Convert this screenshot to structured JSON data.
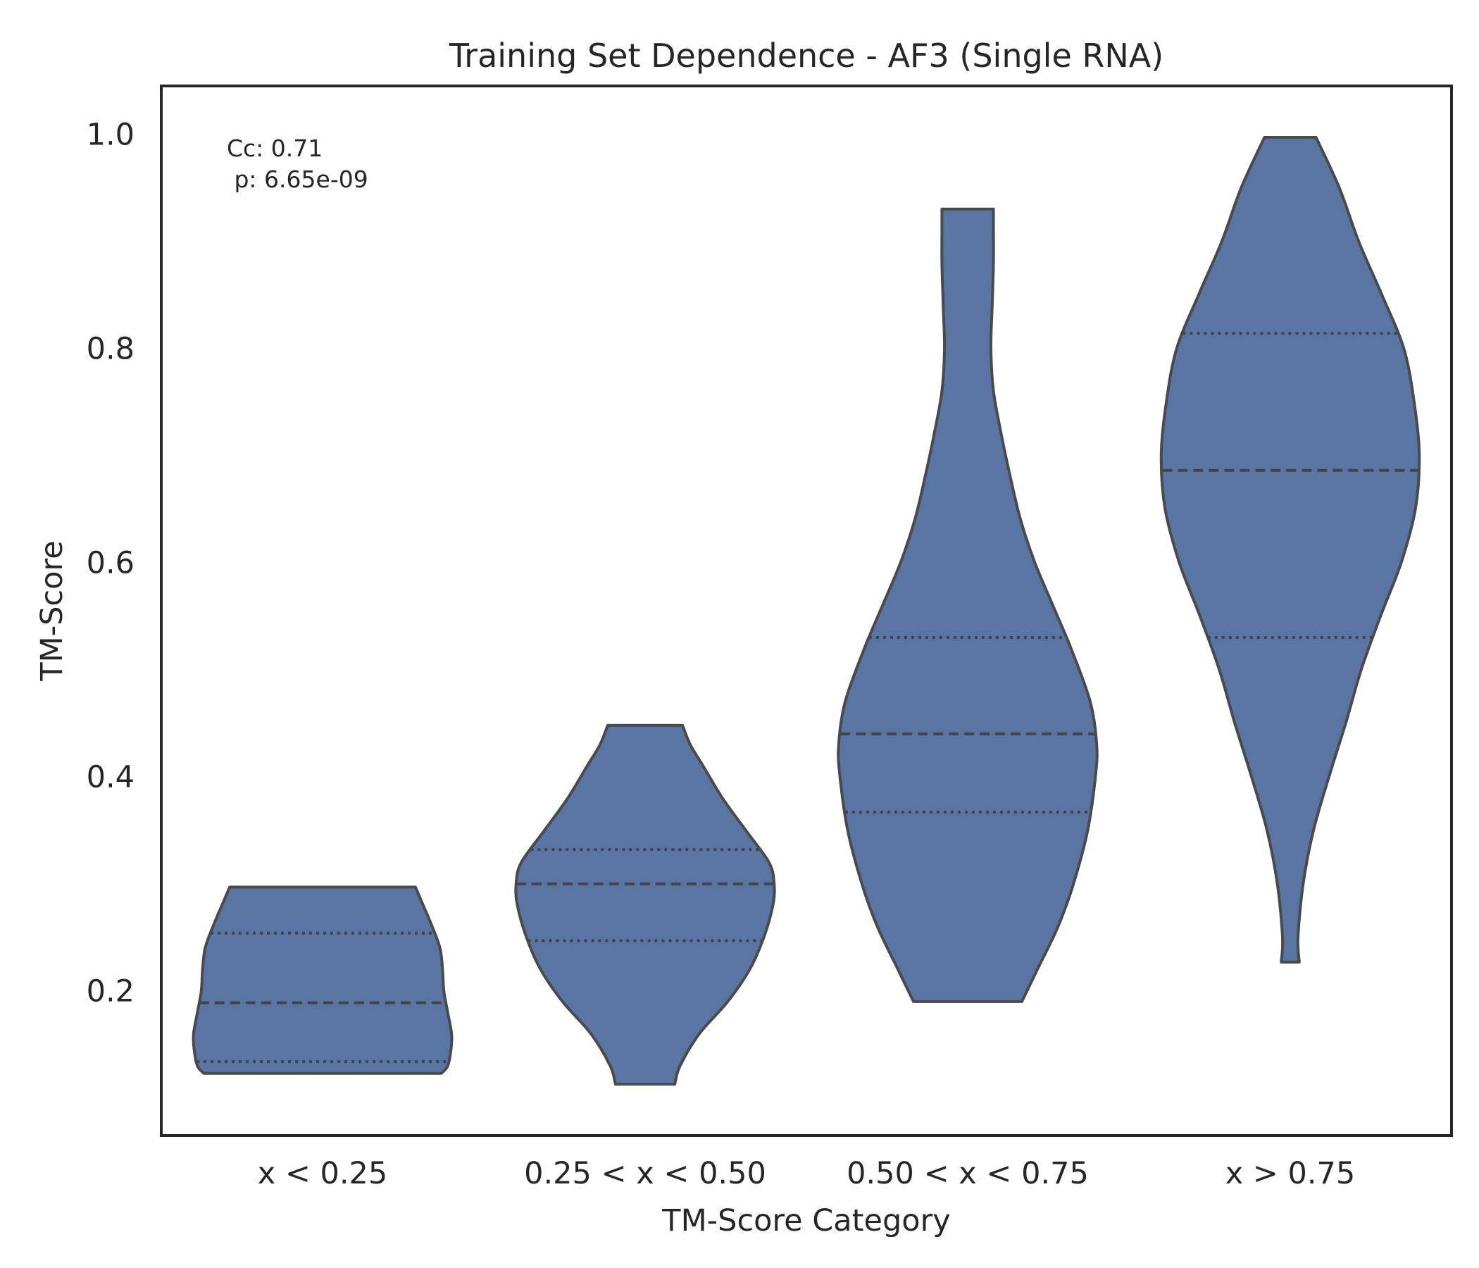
{
  "chart_data": {
    "type": "violin",
    "title": "Training Set Dependence - AF3 (Single RNA)",
    "xlabel": "TM-Score Category",
    "ylabel": "TM-Score",
    "categories": [
      "x < 0.25",
      "0.25 < x < 0.50",
      "0.50 < x < 0.75",
      "x > 0.75"
    ],
    "yticks": [
      "0.2",
      "0.4",
      "0.6",
      "0.8",
      "1.0"
    ],
    "ylim": [
      0.065,
      1.045
    ],
    "annotation": [
      "Cc: 0.71",
      " p: 6.65e-09"
    ],
    "color": "#5875a4",
    "grid": false,
    "violins": [
      {
        "category": "x < 0.25",
        "min": 0.123,
        "max": 0.297,
        "q1": 0.134,
        "median": 0.189,
        "q3": 0.254,
        "profile": [
          [
            0.123,
            0.92
          ],
          [
            0.13,
            0.97
          ],
          [
            0.145,
            0.995
          ],
          [
            0.16,
            1.0
          ],
          [
            0.18,
            0.97
          ],
          [
            0.2,
            0.94
          ],
          [
            0.22,
            0.93
          ],
          [
            0.24,
            0.91
          ],
          [
            0.26,
            0.85
          ],
          [
            0.28,
            0.78
          ],
          [
            0.297,
            0.72
          ]
        ]
      },
      {
        "category": "0.25 < x < 0.50",
        "min": 0.113,
        "max": 0.448,
        "q1": 0.247,
        "median": 0.3,
        "q3": 0.332,
        "profile": [
          [
            0.113,
            0.23
          ],
          [
            0.13,
            0.27
          ],
          [
            0.16,
            0.42
          ],
          [
            0.19,
            0.64
          ],
          [
            0.22,
            0.81
          ],
          [
            0.25,
            0.92
          ],
          [
            0.28,
            0.99
          ],
          [
            0.3,
            1.0
          ],
          [
            0.32,
            0.96
          ],
          [
            0.35,
            0.78
          ],
          [
            0.38,
            0.6
          ],
          [
            0.41,
            0.45
          ],
          [
            0.43,
            0.35
          ],
          [
            0.448,
            0.29
          ]
        ]
      },
      {
        "category": "0.50 < x < 0.75",
        "min": 0.19,
        "max": 0.93,
        "q1": 0.367,
        "median": 0.44,
        "q3": 0.53,
        "profile": [
          [
            0.19,
            0.42
          ],
          [
            0.22,
            0.54
          ],
          [
            0.26,
            0.7
          ],
          [
            0.3,
            0.82
          ],
          [
            0.35,
            0.93
          ],
          [
            0.4,
            0.99
          ],
          [
            0.43,
            1.0
          ],
          [
            0.47,
            0.95
          ],
          [
            0.52,
            0.8
          ],
          [
            0.56,
            0.66
          ],
          [
            0.6,
            0.52
          ],
          [
            0.64,
            0.41
          ],
          [
            0.68,
            0.33
          ],
          [
            0.72,
            0.26
          ],
          [
            0.76,
            0.2
          ],
          [
            0.8,
            0.18
          ],
          [
            0.84,
            0.19
          ],
          [
            0.88,
            0.2
          ],
          [
            0.91,
            0.2
          ],
          [
            0.93,
            0.2
          ]
        ]
      },
      {
        "category": "x > 0.75",
        "min": 0.227,
        "max": 0.997,
        "q1": 0.53,
        "median": 0.686,
        "q3": 0.814,
        "profile": [
          [
            0.227,
            0.07
          ],
          [
            0.25,
            0.06
          ],
          [
            0.3,
            0.1
          ],
          [
            0.35,
            0.18
          ],
          [
            0.4,
            0.3
          ],
          [
            0.45,
            0.43
          ],
          [
            0.5,
            0.55
          ],
          [
            0.55,
            0.7
          ],
          [
            0.6,
            0.86
          ],
          [
            0.65,
            0.97
          ],
          [
            0.7,
            1.0
          ],
          [
            0.75,
            0.96
          ],
          [
            0.8,
            0.88
          ],
          [
            0.85,
            0.71
          ],
          [
            0.9,
            0.53
          ],
          [
            0.95,
            0.38
          ],
          [
            0.997,
            0.2
          ]
        ]
      }
    ]
  }
}
